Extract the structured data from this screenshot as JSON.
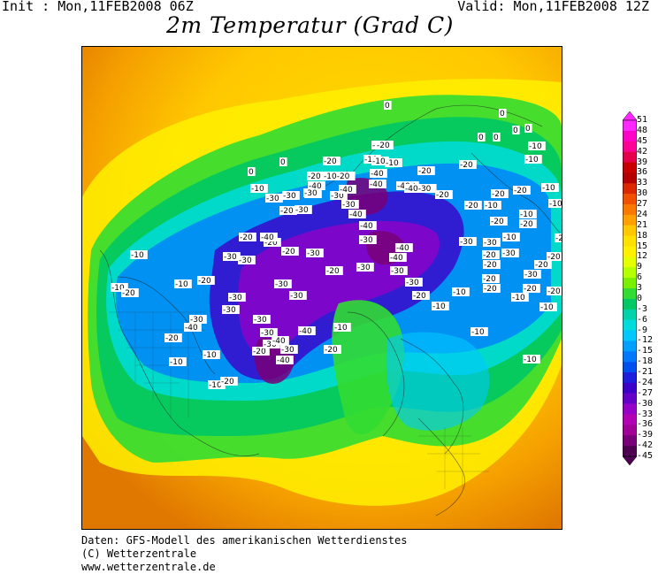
{
  "header": {
    "init": "Init : Mon,11FEB2008 06Z",
    "valid": "Valid: Mon,11FEB2008 12Z",
    "title": "2m Temperatur (Grad C)"
  },
  "colorbar": {
    "ticks": [
      "51",
      "48",
      "45",
      "42",
      "39",
      "36",
      "33",
      "30",
      "27",
      "24",
      "21",
      "18",
      "15",
      "12",
      "9",
      "6",
      "3",
      "0",
      "-3",
      "-6",
      "-9",
      "-12",
      "-15",
      "-18",
      "-21",
      "-24",
      "-27",
      "-30",
      "-33",
      "-36",
      "-39",
      "-42",
      "-45"
    ],
    "colors": [
      "#ff28ff",
      "#ff00c8",
      "#ff0096",
      "#e6004b",
      "#c80000",
      "#b40000",
      "#dc2800",
      "#f05000",
      "#f87800",
      "#ffa000",
      "#ffc800",
      "#ffe100",
      "#fff000",
      "#e6ff00",
      "#b4ff00",
      "#78f000",
      "#32dc32",
      "#00c864",
      "#00d2aa",
      "#00dcdc",
      "#00c8ff",
      "#00a0ff",
      "#0078ff",
      "#0050f0",
      "#1e1edc",
      "#3c00c8",
      "#6400c8",
      "#9600c8",
      "#b400b4",
      "#a00096",
      "#780078",
      "#500050"
    ]
  },
  "map": {
    "labels": [
      [
        "0",
        434,
        121
      ],
      [
        "0",
        316,
        185
      ],
      [
        "0",
        280,
        196
      ],
      [
        "0",
        564,
        130
      ],
      [
        "0",
        540,
        157
      ],
      [
        "0",
        557,
        157
      ],
      [
        "0",
        579,
        149
      ],
      [
        "0",
        593,
        147
      ],
      [
        "-10",
        420,
        166
      ],
      [
        "-10",
        597,
        167
      ],
      [
        "-10",
        411,
        182
      ],
      [
        "-10",
        593,
        182
      ],
      [
        "-10",
        364,
        201
      ],
      [
        "-10",
        283,
        215
      ],
      [
        "-10",
        612,
        214
      ],
      [
        "-10",
        547,
        234
      ],
      [
        "-10",
        620,
        232
      ],
      [
        "-10",
        587,
        244
      ],
      [
        "-10",
        568,
        270
      ],
      [
        "-10",
        147,
        290
      ],
      [
        "-10",
        125,
        327
      ],
      [
        "-10",
        197,
        323
      ],
      [
        "-10",
        511,
        332
      ],
      [
        "-10",
        488,
        348
      ],
      [
        "-10",
        578,
        338
      ],
      [
        "-10",
        610,
        349
      ],
      [
        "-10",
        377,
        372
      ],
      [
        "-10",
        532,
        377
      ],
      [
        "-10",
        229,
        403
      ],
      [
        "-10",
        191,
        411
      ],
      [
        "-10",
        235,
        437
      ],
      [
        "-10",
        591,
        408
      ],
      [
        "-20",
        365,
        184
      ],
      [
        "-20",
        472,
        195
      ],
      [
        "-20",
        519,
        188
      ],
      [
        "-20",
        347,
        201
      ],
      [
        "-20",
        454,
        212
      ],
      [
        "-20",
        492,
        222
      ],
      [
        "-20",
        525,
        234
      ],
      [
        "-20",
        555,
        221
      ],
      [
        "-20",
        580,
        217
      ],
      [
        "-20",
        554,
        252
      ],
      [
        "-20",
        587,
        255
      ],
      [
        "-20",
        627,
        271
      ],
      [
        "-20",
        270,
        270
      ],
      [
        "-20",
        298,
        276
      ],
      [
        "-20",
        318,
        286
      ],
      [
        "-20",
        368,
        308
      ],
      [
        "-20",
        316,
        240
      ],
      [
        "-20",
        223,
        319
      ],
      [
        "-20",
        285,
        399
      ],
      [
        "-20",
        249,
        433
      ],
      [
        "-20",
        186,
        384
      ],
      [
        "-20",
        137,
        333
      ],
      [
        "-20",
        366,
        397
      ],
      [
        "-20",
        545,
        290
      ],
      [
        "-20",
        546,
        328
      ],
      [
        "-20",
        545,
        317
      ],
      [
        "-20",
        546,
        301
      ],
      [
        "-20",
        591,
        328
      ],
      [
        "-20",
        618,
        331
      ],
      [
        "-20",
        604,
        301
      ],
      [
        "-20",
        618,
        292
      ],
      [
        "-20",
        466,
        336
      ],
      [
        "-30",
        344,
        221
      ],
      [
        "-30",
        373,
        223
      ],
      [
        "-30",
        386,
        233
      ],
      [
        "-30",
        300,
        226
      ],
      [
        "-30",
        333,
        239
      ],
      [
        "-30",
        406,
        273
      ],
      [
        "-30",
        519,
        275
      ],
      [
        "-30",
        252,
        292
      ],
      [
        "-30",
        269,
        296
      ],
      [
        "-30",
        346,
        288
      ],
      [
        "-30",
        403,
        304
      ],
      [
        "-30",
        258,
        338
      ],
      [
        "-30",
        310,
        323
      ],
      [
        "-30",
        286,
        363
      ],
      [
        "-30",
        251,
        352
      ],
      [
        "-30",
        214,
        363
      ],
      [
        "-30",
        327,
        336
      ],
      [
        "-30",
        294,
        378
      ],
      [
        "-30",
        297,
        391
      ],
      [
        "-30",
        317,
        397
      ],
      [
        "-30",
        458,
        321
      ],
      [
        "-30",
        546,
        276
      ],
      [
        "-30",
        567,
        288
      ],
      [
        "-30",
        592,
        312
      ],
      [
        "-30",
        441,
        308
      ],
      [
        "-30",
        319,
        223
      ],
      [
        "-40",
        448,
        212
      ],
      [
        "-40",
        418,
        198
      ],
      [
        "-40",
        383,
        216
      ],
      [
        "-40",
        394,
        244
      ],
      [
        "-40",
        406,
        257
      ],
      [
        "-40",
        294,
        270
      ],
      [
        "-40",
        440,
        293
      ],
      [
        "-40",
        337,
        376
      ],
      [
        "-40",
        307,
        387
      ],
      [
        "-40",
        312,
        409
      ],
      [
        "-40",
        208,
        372
      ],
      [
        "-40",
        447,
        282
      ],
      [
        "-40",
        348,
        212
      ],
      [
        "-40",
        417,
        210
      ],
      [
        "-10-20",
        365,
        201
      ],
      [
        "-40-30",
        457,
        215
      ],
      [
        "-10",
        420,
        184
      ],
      [
        "-10",
        435,
        186
      ],
      [
        "-30",
        343,
        220
      ],
      [
        "-20",
        425,
        166
      ]
    ]
  },
  "footer": {
    "line1": "Daten: GFS-Modell des amerikanischen Wetterdienstes",
    "line2": "(C) Wetterzentrale",
    "line3": "www.wetterzentrale.de"
  }
}
